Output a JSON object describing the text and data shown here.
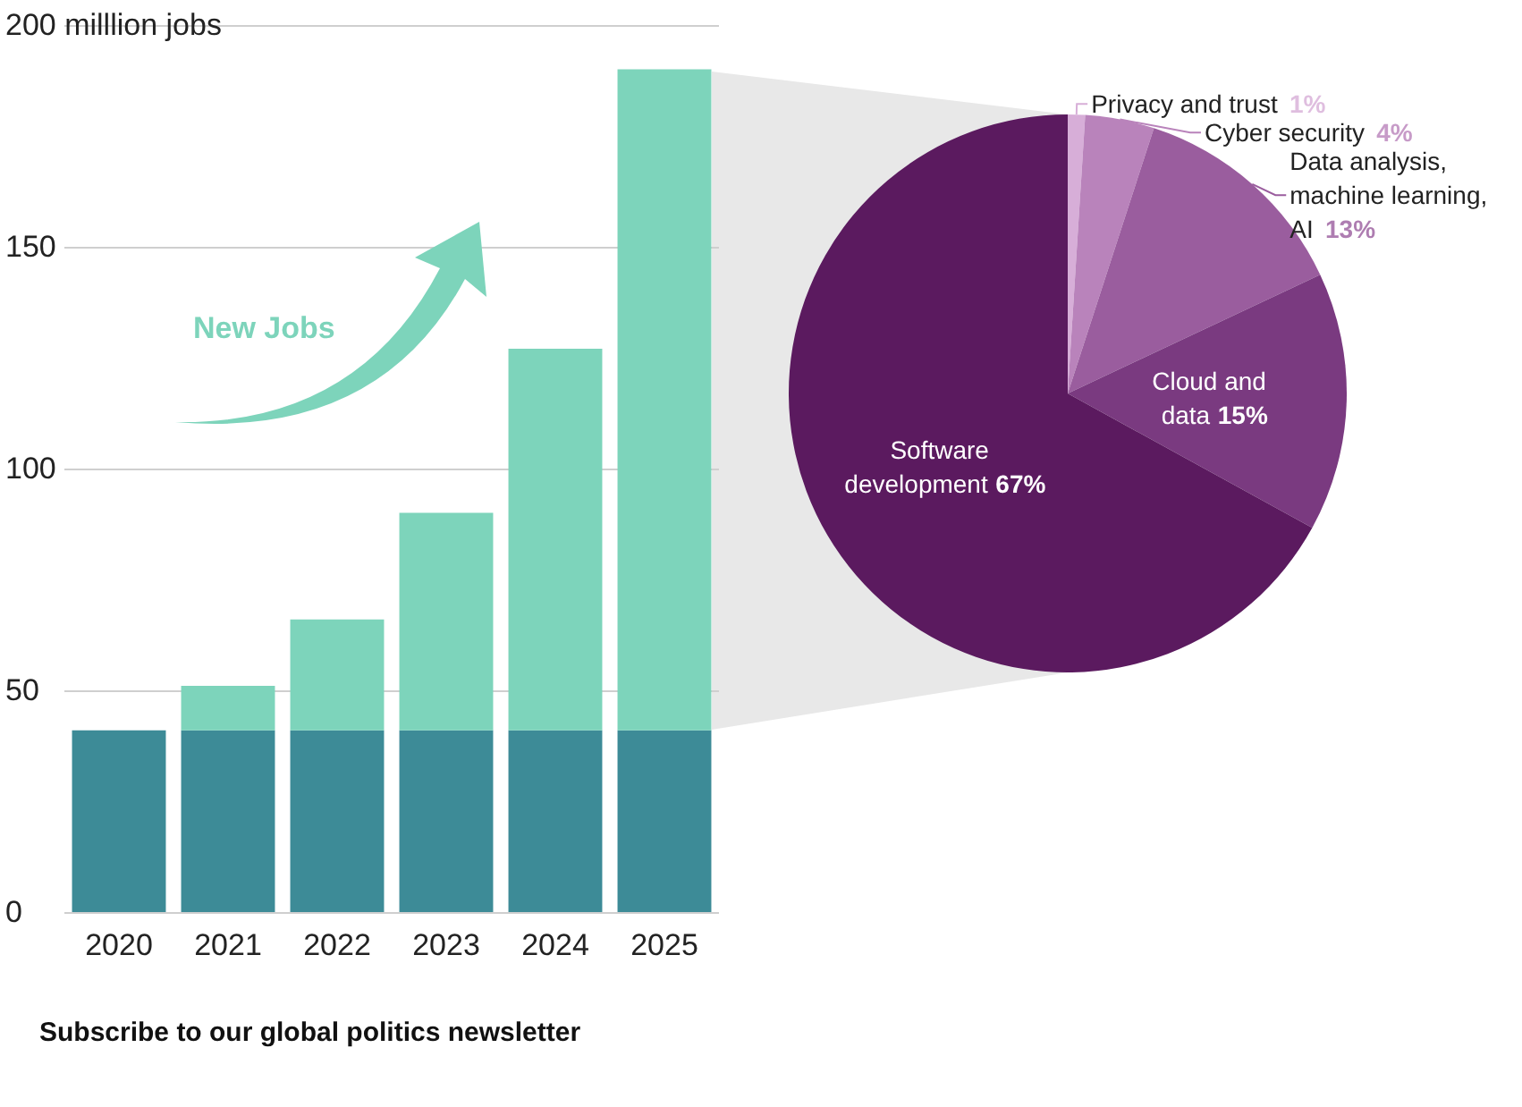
{
  "chart_data": [
    {
      "type": "bar",
      "stacked": true,
      "categories": [
        "2020",
        "2021",
        "2022",
        "2023",
        "2024",
        "2025"
      ],
      "series": [
        {
          "color": "#3d8b97",
          "values": [
            41,
            41,
            41,
            41,
            41,
            41
          ]
        },
        {
          "color": "#7dd4bb",
          "values": [
            null,
            10,
            25,
            49,
            86,
            149
          ]
        }
      ],
      "ylim": [
        0,
        200
      ],
      "yticks": [
        0,
        50,
        100,
        150,
        {
          "value": 200,
          "label": "200 milllion jobs"
        }
      ],
      "grid": "y",
      "legend": false,
      "annotations": [
        "New Jobs",
        "Subscribe to our global politics newsletter"
      ]
    },
    {
      "type": "pie",
      "categories": [
        "Privacy and trust",
        "Cyber security",
        "Data analysis, machine learning, AI",
        "Cloud and data",
        "Software development"
      ],
      "values": [
        1,
        4,
        13,
        15,
        67
      ],
      "colors": [
        "#d7aed8",
        "#b983bb",
        "#9a5d9e",
        "#7a3a80",
        "#5b1a5f"
      ],
      "value_labels": [
        "1%",
        "4%",
        "13%",
        "15%",
        "67%"
      ],
      "legend": false
    }
  ]
}
